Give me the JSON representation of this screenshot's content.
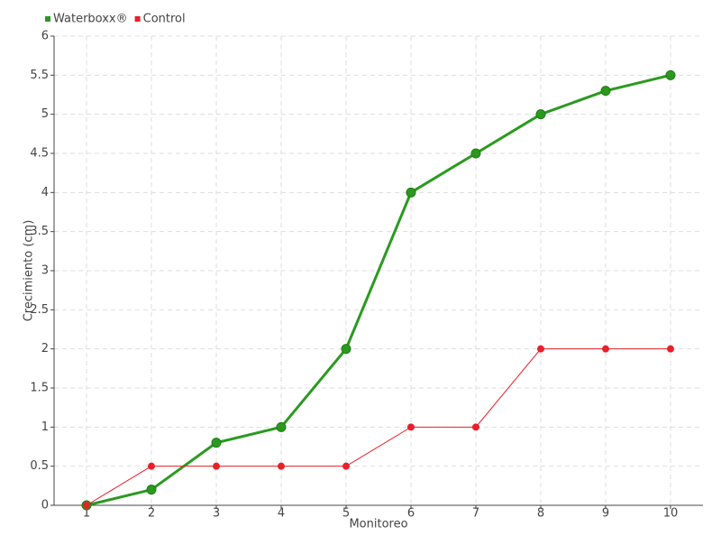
{
  "chart_data": {
    "type": "line",
    "x_label": "Monitoreo",
    "y_label": "Crecimiento (cm)",
    "categories": [
      "1",
      "2",
      "3",
      "4",
      "5",
      "6",
      "7",
      "8",
      "9",
      "10"
    ],
    "series": [
      {
        "name": "Waterboxx®",
        "color": "#2a9a1f",
        "values": [
          0,
          0.2,
          0.8,
          1,
          2,
          4,
          4.5,
          5,
          5.3,
          5.5
        ]
      },
      {
        "name": "Control",
        "color": "#e8202a",
        "values": [
          0,
          0.5,
          0.5,
          0.5,
          0.5,
          1,
          1,
          2,
          2,
          2
        ]
      }
    ],
    "ylim": [
      0,
      6
    ],
    "yticks": [
      0,
      0.5,
      1,
      1.5,
      2,
      2.5,
      3,
      3.5,
      4,
      4.5,
      5,
      5.5,
      6
    ],
    "grid": true,
    "legend": "top-left"
  }
}
